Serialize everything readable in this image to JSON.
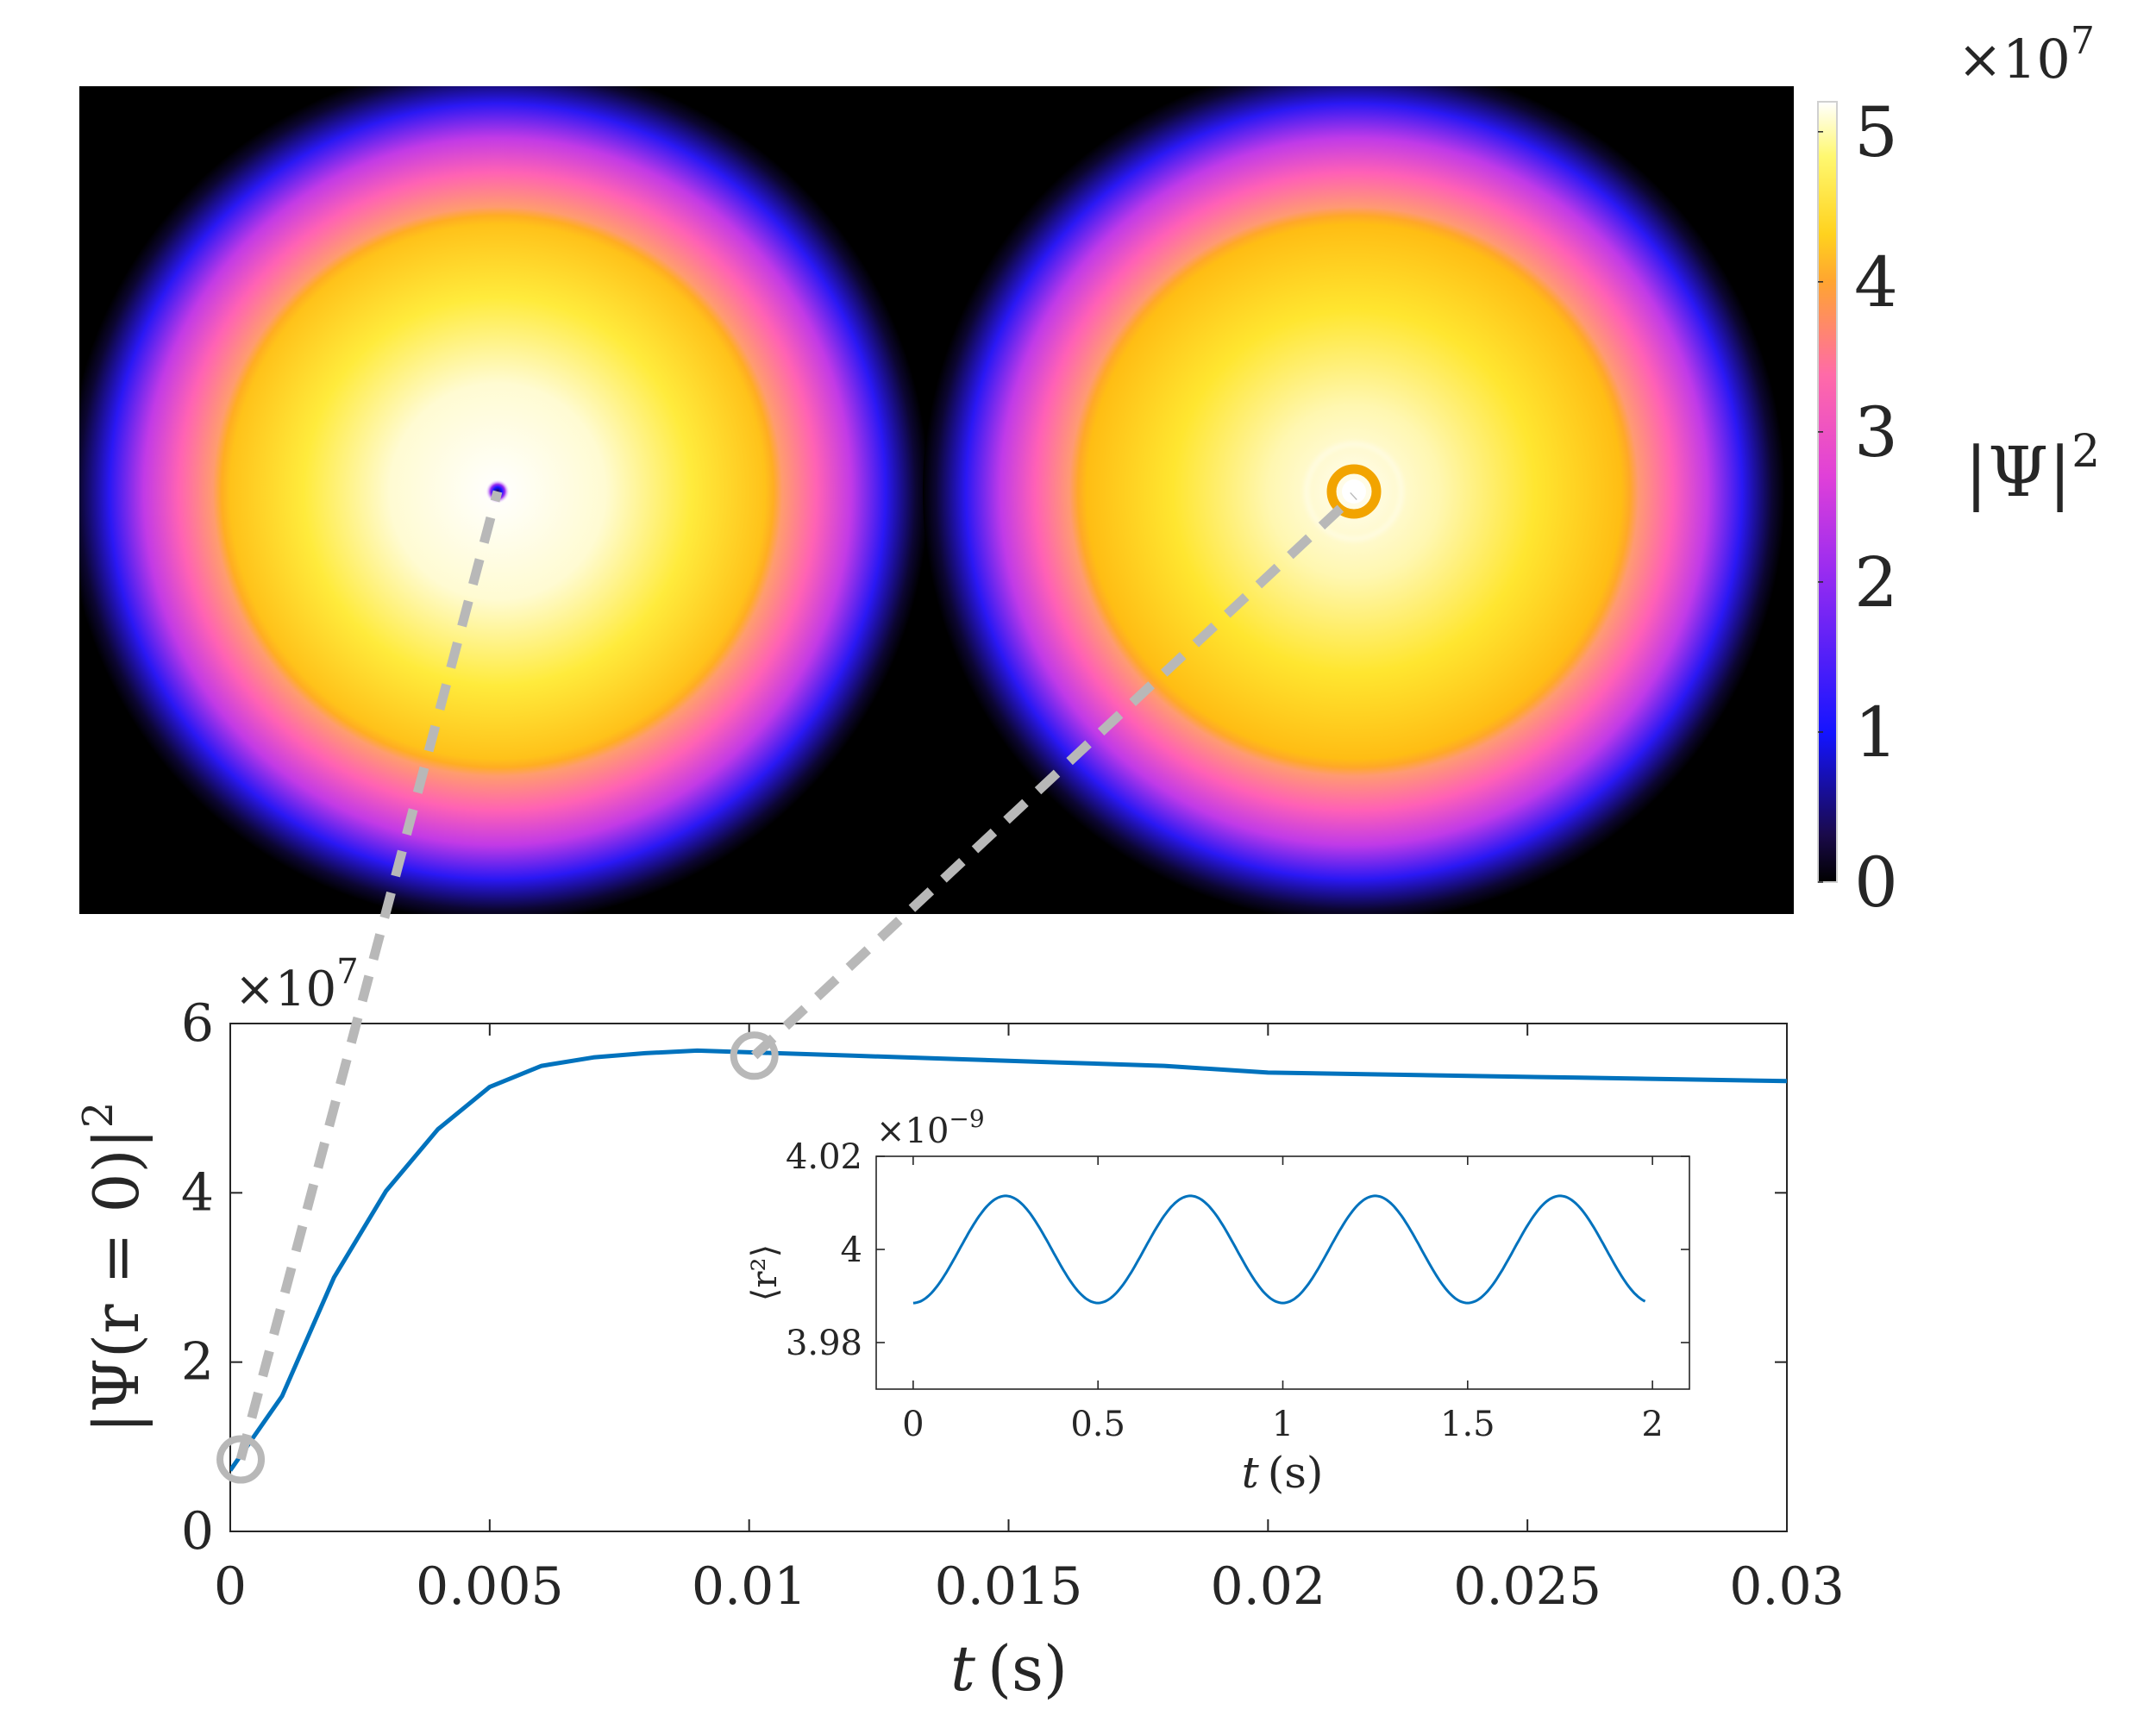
{
  "density_maps": {
    "colorbar": {
      "ticks": [
        "0",
        "1",
        "2",
        "3",
        "4",
        "5"
      ],
      "tick_values": [
        0,
        1,
        2,
        3,
        4,
        5
      ],
      "range": [
        0,
        5.2
      ],
      "exponent_prefix": "×10",
      "exponent": "7",
      "label_main": "|Ψ|",
      "label_sup": "2",
      "colormap": [
        "#000000",
        "#1a0a4a",
        "#1414ff",
        "#9a2cf0",
        "#e040d8",
        "#ff6aa8",
        "#ffa530",
        "#ffd21e",
        "#fff870",
        "#ffffff"
      ]
    },
    "panels": [
      {
        "name": "early-state",
        "core": "dark-vortex-core"
      },
      {
        "name": "late-state",
        "core": "bright-ring"
      }
    ],
    "connector_color": "#b8b8b8"
  },
  "chart_data": [
    {
      "type": "line",
      "title": "",
      "xlabel_var": "t",
      "xlabel_unit": "(s)",
      "ylabel_text": "|Ψ(r = 0)|",
      "ylabel_sup": "2",
      "xlim": [
        0,
        0.03
      ],
      "ylim": [
        0,
        6
      ],
      "y_exponent_prefix": "×10",
      "y_exponent": "7",
      "xticks": [
        0,
        0.005,
        0.01,
        0.015,
        0.02,
        0.025,
        0.03
      ],
      "xtick_labels": [
        "0",
        "0.005",
        "0.01",
        "0.015",
        "0.02",
        "0.025",
        "0.03"
      ],
      "yticks": [
        0,
        2,
        4,
        6
      ],
      "ytick_labels": [
        "0",
        "2",
        "4",
        "6"
      ],
      "series": [
        {
          "color": "#0072bd",
          "x": [
            0,
            0.001,
            0.002,
            0.003,
            0.004,
            0.005,
            0.006,
            0.007,
            0.008,
            0.009,
            0.01,
            0.012,
            0.014,
            0.016,
            0.018,
            0.02,
            0.022,
            0.024,
            0.026,
            0.028,
            0.03
          ],
          "y": [
            0.72,
            1.6,
            3.0,
            4.02,
            4.75,
            5.25,
            5.5,
            5.6,
            5.65,
            5.68,
            5.66,
            5.62,
            5.58,
            5.54,
            5.5,
            5.42,
            5.4,
            5.38,
            5.36,
            5.34,
            5.32
          ]
        }
      ],
      "markers": [
        {
          "x": 0.0002,
          "y": 0.85
        },
        {
          "x": 0.0101,
          "y": 5.62
        }
      ]
    },
    {
      "type": "line",
      "title": "",
      "xlabel_var": "t",
      "xlabel_unit": "(s)",
      "ylabel": "⟨r²⟩",
      "xlim": [
        -0.1,
        2.1
      ],
      "ylim": [
        3.97,
        4.02
      ],
      "y_exponent_prefix": "×10",
      "y_exponent": "−9",
      "xticks": [
        0,
        0.5,
        1,
        1.5,
        2
      ],
      "xtick_labels": [
        "0",
        "0.5",
        "1",
        "1.5",
        "2"
      ],
      "yticks": [
        3.98,
        4.0,
        4.02
      ],
      "ytick_labels": [
        "3.98",
        "4",
        "4.02"
      ],
      "series": [
        {
          "color": "#0072bd",
          "function": "4.0 - 0.0115*cos(4*pi*t)",
          "t_range": [
            0,
            1.98
          ]
        }
      ]
    }
  ]
}
